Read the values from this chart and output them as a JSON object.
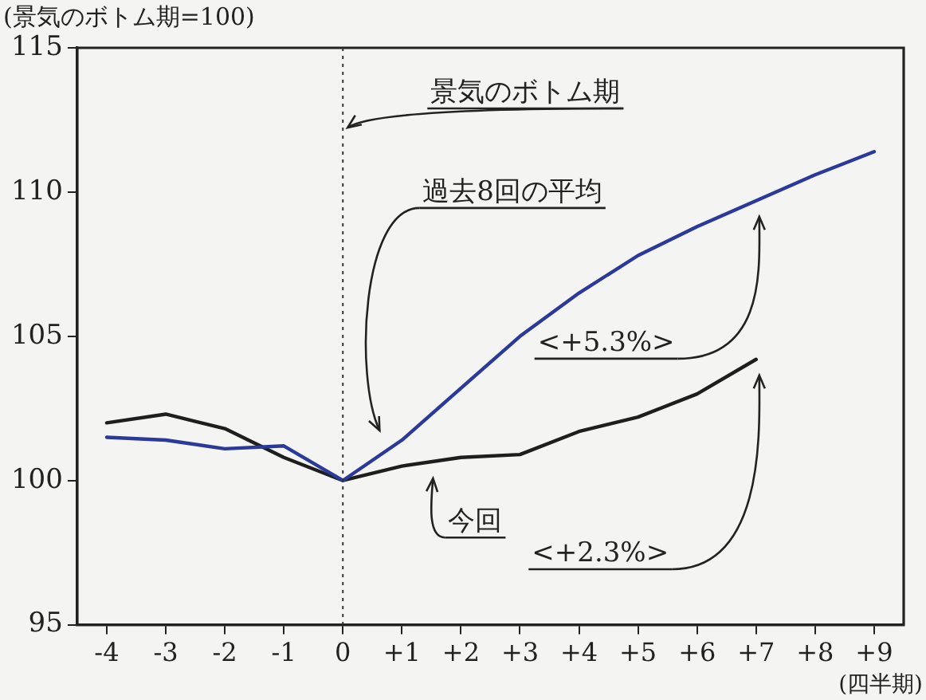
{
  "chart_data": {
    "type": "line",
    "ylabel": "(景気のボトム期=100)",
    "xlabel": "(四半期)",
    "categories": [
      "-4",
      "-3",
      "-2",
      "-1",
      "0",
      "+1",
      "+2",
      "+3",
      "+4",
      "+5",
      "+6",
      "+7",
      "+8",
      "+9"
    ],
    "series": [
      {
        "name": "過去8回の平均",
        "color": "#2b3a9a",
        "values": [
          101.5,
          101.4,
          101.1,
          101.2,
          100,
          101.4,
          103.2,
          105.0,
          106.5,
          107.8,
          108.8,
          109.7,
          110.6,
          111.4
        ]
      },
      {
        "name": "今回",
        "color": "#1e1e1e",
        "values": [
          102.0,
          102.3,
          101.8,
          100.8,
          100,
          100.5,
          100.8,
          100.9,
          101.7,
          102.2,
          103.0,
          104.2,
          null,
          null
        ]
      }
    ],
    "ylim": [
      95,
      115
    ],
    "yticks": [
      95,
      100,
      105,
      110,
      115
    ],
    "grid": false,
    "marker": "none",
    "line_style": "solid",
    "ref_lines": [
      {
        "axis": "x",
        "value": "0",
        "label": "景気のボトム期",
        "line_style": "dotted",
        "color": "#333333"
      }
    ],
    "annotations": [
      "<+5.3%>",
      "<+2.3%>"
    ]
  }
}
